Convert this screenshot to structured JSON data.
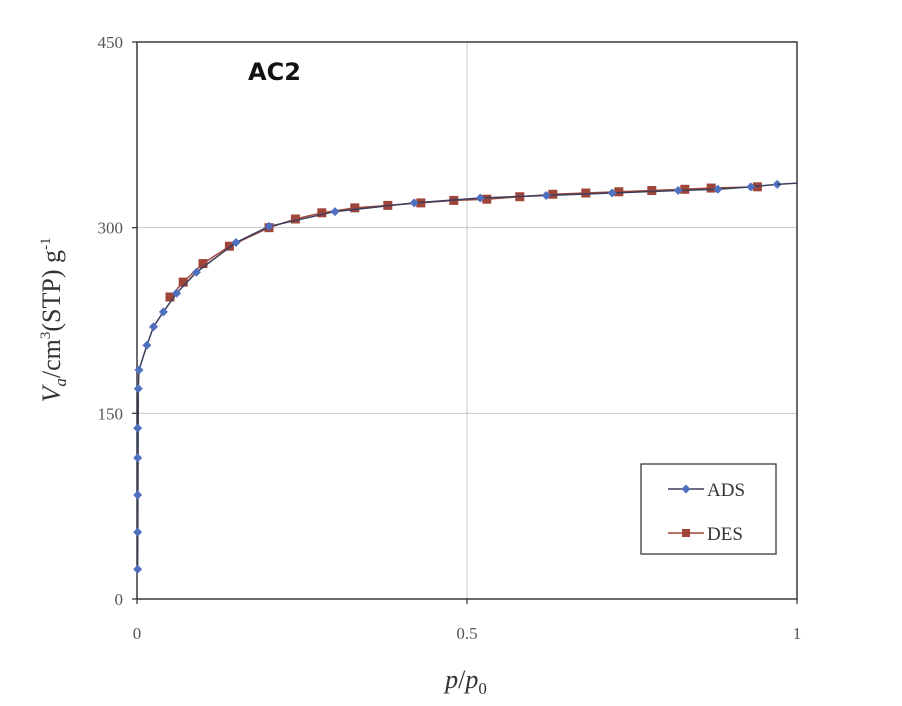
{
  "chart_data": {
    "type": "line",
    "title": "AC2",
    "xlabel": "p/p0",
    "ylabel": "Va/cm3(STP) g-1",
    "xlabel_parts": {
      "p": "p",
      "sep": "/",
      "p0": "p",
      "sub": "0"
    },
    "ylabel_parts": {
      "v": "V",
      "vsub": "a",
      "mid": "/cm",
      "sup3": "3",
      "rest": "(STP) g",
      "supm1": "-1"
    },
    "xlim": [
      0,
      1
    ],
    "ylim": [
      0,
      450
    ],
    "xticks": [
      0,
      0.5,
      1
    ],
    "xtick_labels": [
      "0",
      "0.5",
      "1"
    ],
    "yticks": [
      0,
      150,
      300,
      450
    ],
    "ytick_labels": [
      "0",
      "150",
      "300",
      "450"
    ],
    "grid": true,
    "legend": "bottom-right",
    "series": [
      {
        "name": "ADS",
        "color": "#4f6fbf",
        "marker": "diamond",
        "x": [
          0.001,
          0.001,
          0.001,
          0.001,
          0.001,
          0.002,
          0.003,
          0.015,
          0.025,
          0.04,
          0.06,
          0.09,
          0.15,
          0.2,
          0.3,
          0.42,
          0.52,
          0.62,
          0.72,
          0.82,
          0.88,
          0.93,
          0.97
        ],
        "y": [
          24,
          54,
          84,
          114,
          138,
          170,
          185,
          205,
          220,
          232,
          247,
          264,
          288,
          301,
          313,
          320,
          324,
          326,
          328,
          330,
          331,
          333,
          335
        ]
      },
      {
        "name": "DES",
        "color": "#a0453a",
        "marker": "square",
        "x": [
          0.94,
          0.87,
          0.83,
          0.78,
          0.73,
          0.68,
          0.63,
          0.58,
          0.53,
          0.48,
          0.43,
          0.38,
          0.33,
          0.28,
          0.24,
          0.2,
          0.14,
          0.1,
          0.07,
          0.05
        ],
        "y": [
          333,
          332,
          331,
          330,
          329,
          328,
          327,
          325,
          323,
          322,
          320,
          318,
          316,
          312,
          307,
          300,
          285,
          271,
          256,
          244
        ]
      }
    ]
  }
}
